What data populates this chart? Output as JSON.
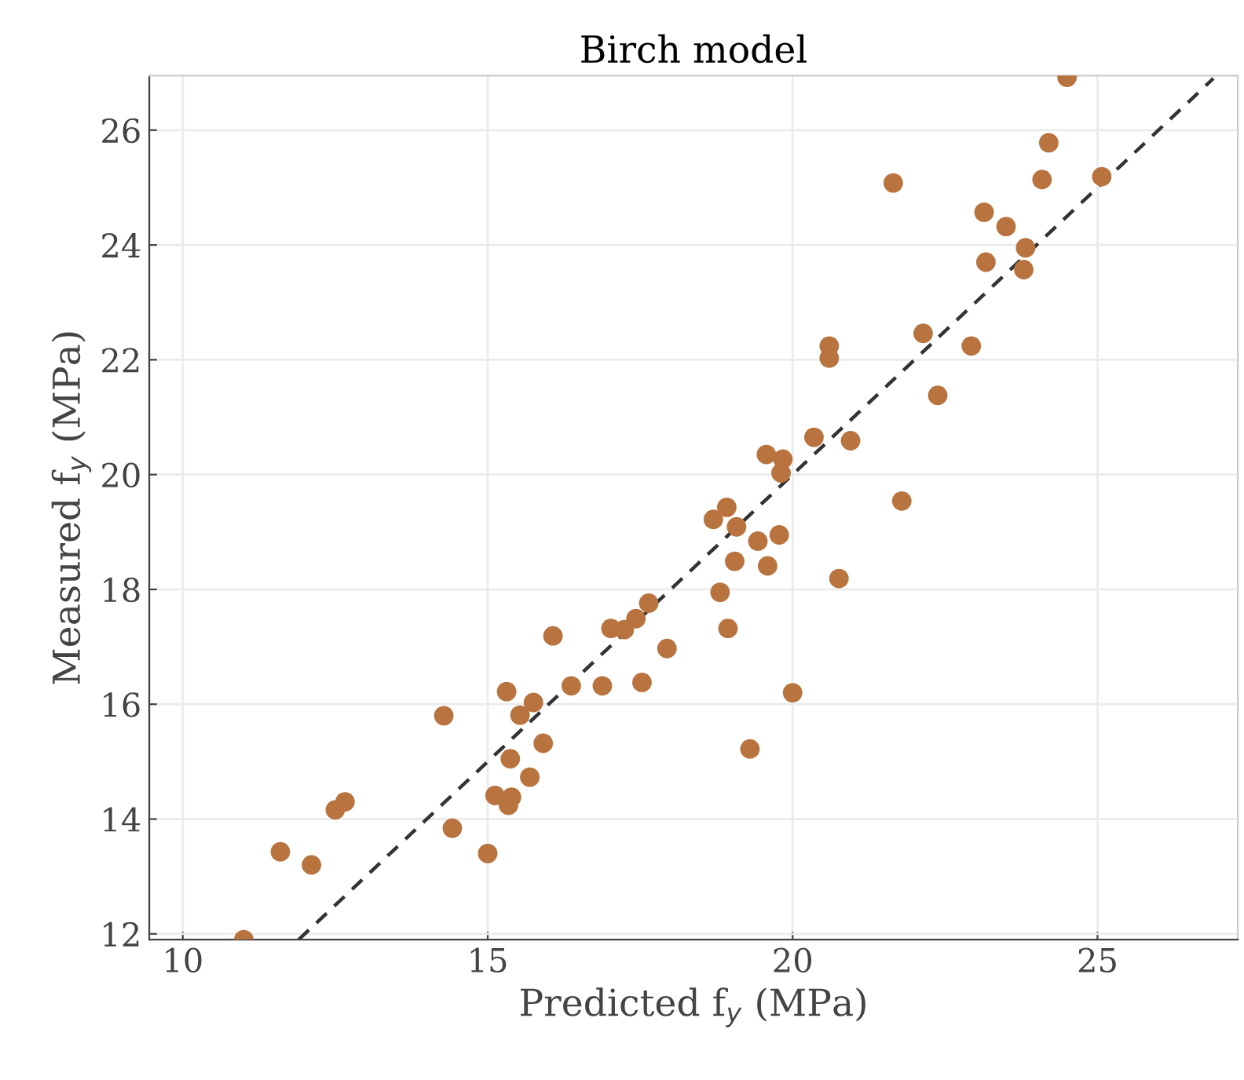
{
  "chart_data": {
    "type": "scatter",
    "title": "Birch model",
    "xlabel": "Predicted f$_{y}$ (MPa)",
    "ylabel": "Measured f$_{y}$ (MPa)",
    "xlim": [
      9.45,
      27.3
    ],
    "ylim": [
      11.9,
      26.95
    ],
    "xticks": [
      10,
      15,
      20,
      25
    ],
    "yticks": [
      12,
      14,
      16,
      18,
      20,
      22,
      24,
      26
    ],
    "grid": true,
    "series": [
      {
        "marker": "circle",
        "color": "#b8733f",
        "x": [
          11.0,
          11.6,
          12.11,
          12.5,
          12.66,
          14.28,
          14.42,
          15.0,
          16.07,
          15.31,
          15.75,
          15.53,
          15.91,
          15.37,
          15.69,
          15.12,
          15.39,
          15.34,
          20.35,
          20.95,
          19.57,
          19.84,
          19.81,
          18.92,
          18.7,
          19.08,
          19.43,
          19.78,
          19.05,
          19.59,
          20.76,
          18.81,
          17.64,
          17.43,
          17.02,
          17.24,
          18.94,
          17.94,
          16.37,
          16.88,
          17.53,
          20.0,
          19.3,
          24.5,
          24.2,
          21.65,
          24.09,
          25.07,
          23.14,
          23.5,
          23.82,
          23.17,
          23.79,
          22.14,
          20.6,
          20.6,
          22.93,
          22.38,
          21.79
        ],
        "values": [
          11.9,
          13.43,
          13.2,
          14.16,
          14.3,
          15.8,
          13.84,
          13.4,
          17.19,
          16.22,
          16.03,
          15.81,
          15.32,
          15.05,
          14.73,
          14.41,
          14.38,
          14.24,
          20.65,
          20.59,
          20.35,
          20.27,
          20.03,
          19.43,
          19.22,
          19.09,
          18.84,
          18.95,
          18.49,
          18.41,
          18.19,
          17.95,
          17.76,
          17.49,
          17.32,
          17.3,
          17.32,
          16.97,
          16.32,
          16.32,
          16.38,
          16.2,
          15.22,
          26.92,
          25.78,
          25.08,
          25.14,
          25.19,
          24.57,
          24.32,
          23.95,
          23.7,
          23.57,
          22.46,
          22.24,
          22.03,
          22.24,
          21.38,
          19.54
        ]
      },
      {
        "type": "line",
        "marker": "none",
        "color": "#333333",
        "line_style": "dashed",
        "x": [
          11.9,
          26.9
        ],
        "values": [
          11.9,
          26.9
        ]
      }
    ]
  }
}
